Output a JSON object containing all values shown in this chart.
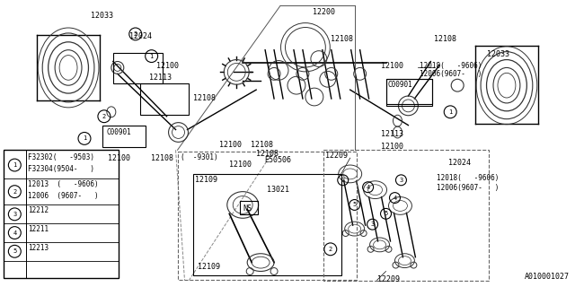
{
  "bg_color": "#ffffff",
  "line_color": "#333333",
  "text_color": "#000000",
  "diagram_id": "A010001027",
  "legend_entries": [
    {
      "circle": "1",
      "codes": [
        "F32302(    -9503)",
        "F32304(9504-    )"
      ]
    },
    {
      "circle": "2",
      "codes": [
        "12013   (    -9606)",
        "12006   (9607-    )"
      ]
    },
    {
      "circle": "3",
      "codes": [
        "12212"
      ]
    },
    {
      "circle": "4",
      "codes": [
        "12211"
      ]
    },
    {
      "circle": "5",
      "codes": [
        "12213"
      ]
    }
  ]
}
